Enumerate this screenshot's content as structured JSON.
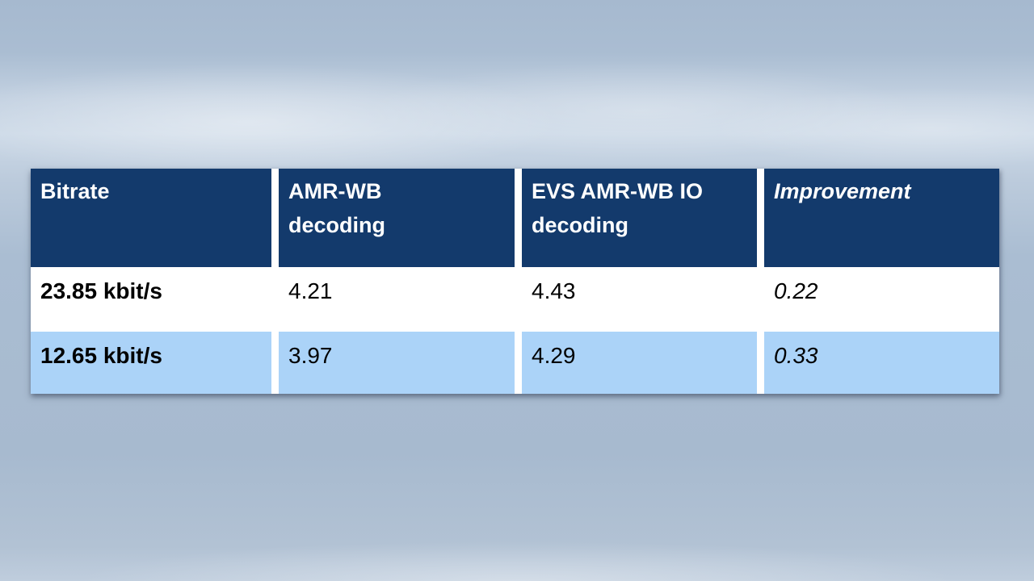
{
  "chart_data": {
    "type": "table",
    "title": "",
    "columns": [
      "Bitrate",
      "AMR-WB decoding",
      "EVS AMR-WB IO decoding",
      "Improvement"
    ],
    "rows": [
      [
        "23.85 kbit/s",
        4.21,
        4.43,
        0.22
      ],
      [
        "12.65 kbit/s",
        3.97,
        4.29,
        0.33
      ]
    ]
  },
  "table": {
    "headers": {
      "bitrate": "Bitrate",
      "amr_wb": "AMR-WB\ndecoding",
      "evs_amr_wb_io": "EVS AMR-WB IO\ndecoding",
      "improvement": "Improvement"
    },
    "rows": [
      {
        "bitrate": "23.85 kbit/s",
        "amr_wb": "4.21",
        "evs_amr_wb_io": "4.43",
        "improvement": "0.22"
      },
      {
        "bitrate": "12.65 kbit/s",
        "amr_wb": "3.97",
        "evs_amr_wb_io": "4.29",
        "improvement": "0.33"
      }
    ]
  },
  "colors": {
    "header_bg": "#133a6c",
    "row_even_bg": "#ffffff",
    "row_odd_bg": "#abd3f8",
    "header_text": "#ffffff",
    "body_text": "#000000",
    "background_base": "#aabdd2",
    "background_light_band": "#ccd9e7"
  }
}
